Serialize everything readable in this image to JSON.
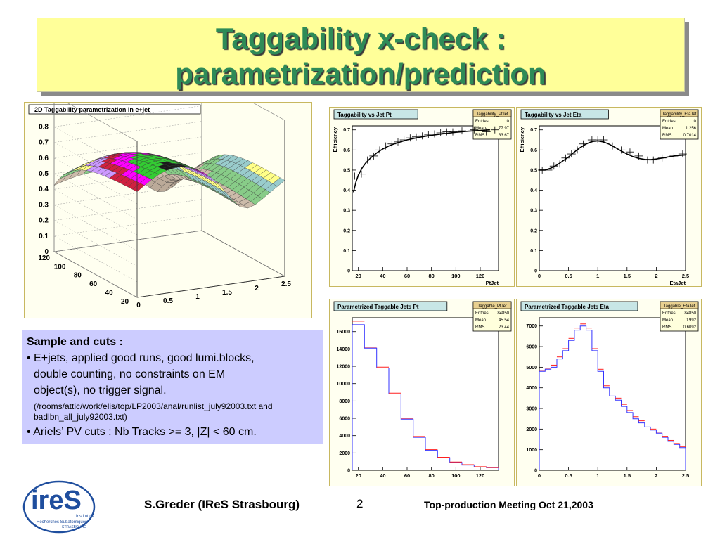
{
  "slide": {
    "title_line1": "Taggability x-check :",
    "title_line2": "parametrization/prediction",
    "footer_author": "S.Greder  (IReS Strasbourg)",
    "footer_page": "2",
    "footer_meeting": "Top-production Meeting   Oct  21,2003",
    "logo_text": "ireS",
    "logo_sub1": "Institut de",
    "logo_sub2": "Recherches Subatomiques",
    "logo_sub3": "STRASBOURG"
  },
  "sample": {
    "heading": "Sample and cuts :",
    "l1": "• E+jets, applied good runs, good lumi.blocks,",
    "l2": "double counting, no constraints on EM",
    "l3": "object(s), no trigger signal.",
    "l4": "(/rooms/attic/work/elis/top/LP2003/anal/runlist_july92003.txt and",
    "l5": "badlbn_all_july92003.txt)",
    "l6": "• Ariels’ PV cuts : Nb Tracks >= 3, |Z| < 60 cm."
  },
  "chart_data": [
    {
      "id": "surface",
      "type": "surface",
      "title": "2D Taggability parametrization in e+jet",
      "zticks": [
        "0",
        "0.1",
        "0.2",
        "0.3",
        "0.4",
        "0.5",
        "0.6",
        "0.7",
        "0.8"
      ],
      "yticks": [
        "120",
        "100",
        "80",
        "60",
        "40",
        "20"
      ],
      "xticks": [
        "0",
        "0.5",
        "1",
        "1.5",
        "2",
        "2.5"
      ]
    },
    {
      "id": "eff_pt",
      "type": "line",
      "title": "Taggability vs Jet Pt",
      "stats_title": "Taggability_PtJet",
      "stats": [
        [
          "Entries",
          "0"
        ],
        [
          "Mean",
          "77.97"
        ],
        [
          "RMS",
          "33.67"
        ]
      ],
      "xlabel": "PtJet",
      "ylabel": "Efficiency",
      "xlim": [
        15,
        135
      ],
      "ylim": [
        0,
        0.72
      ],
      "xticks": [
        20,
        40,
        60,
        80,
        100,
        120
      ],
      "yticks": [
        0,
        0.1,
        0.2,
        0.3,
        0.4,
        0.5,
        0.6,
        0.7
      ],
      "points": [
        [
          17,
          0.47
        ],
        [
          22.5,
          0.48
        ],
        [
          27.5,
          0.55
        ],
        [
          32.5,
          0.57
        ],
        [
          37.5,
          0.6
        ],
        [
          42.5,
          0.62
        ],
        [
          47.5,
          0.63
        ],
        [
          52.5,
          0.64
        ],
        [
          57.5,
          0.65
        ],
        [
          62.5,
          0.66
        ],
        [
          67.5,
          0.665
        ],
        [
          72.5,
          0.67
        ],
        [
          77.5,
          0.675
        ],
        [
          82.5,
          0.68
        ],
        [
          87.5,
          0.685
        ],
        [
          92.5,
          0.69
        ],
        [
          97.5,
          0.69
        ],
        [
          105,
          0.695
        ],
        [
          115,
          0.7
        ],
        [
          125,
          0.69
        ],
        [
          132,
          0.7
        ]
      ],
      "fit": [
        [
          16,
          0.39
        ],
        [
          18,
          0.44
        ],
        [
          20,
          0.475
        ],
        [
          23,
          0.51
        ],
        [
          26,
          0.535
        ],
        [
          30,
          0.56
        ],
        [
          35,
          0.585
        ],
        [
          40,
          0.605
        ],
        [
          45,
          0.62
        ],
        [
          50,
          0.632
        ],
        [
          60,
          0.65
        ],
        [
          70,
          0.663
        ],
        [
          80,
          0.673
        ],
        [
          90,
          0.681
        ],
        [
          100,
          0.688
        ],
        [
          110,
          0.693
        ],
        [
          120,
          0.697
        ],
        [
          128,
          0.7
        ]
      ]
    },
    {
      "id": "eff_eta",
      "type": "line",
      "title": "Taggability vs Jet Eta",
      "stats_title": "Taggability_EtaJet",
      "stats": [
        [
          "Entries",
          "0"
        ],
        [
          "Mean",
          "1.256"
        ],
        [
          "RMS",
          "0.7014"
        ]
      ],
      "xlabel": "EtaJet",
      "ylabel": "Efficiency",
      "xlim": [
        0,
        2.5
      ],
      "ylim": [
        0,
        0.72
      ],
      "xticks": [
        0,
        0.5,
        1,
        1.5,
        2,
        2.5
      ],
      "yticks": [
        0,
        0.1,
        0.2,
        0.3,
        0.4,
        0.5,
        0.6,
        0.7
      ],
      "points": [
        [
          0.05,
          0.5
        ],
        [
          0.15,
          0.5
        ],
        [
          0.25,
          0.52
        ],
        [
          0.35,
          0.53
        ],
        [
          0.45,
          0.56
        ],
        [
          0.55,
          0.58
        ],
        [
          0.65,
          0.6
        ],
        [
          0.75,
          0.63
        ],
        [
          0.9,
          0.65
        ],
        [
          1.0,
          0.65
        ],
        [
          1.1,
          0.65
        ],
        [
          1.25,
          0.62
        ],
        [
          1.4,
          0.6
        ],
        [
          1.55,
          0.59
        ],
        [
          1.7,
          0.57
        ],
        [
          1.85,
          0.55
        ],
        [
          1.95,
          0.55
        ],
        [
          2.1,
          0.56
        ],
        [
          2.3,
          0.57
        ],
        [
          2.45,
          0.58
        ]
      ],
      "fit": [
        [
          0,
          0.5
        ],
        [
          0.1,
          0.5
        ],
        [
          0.2,
          0.51
        ],
        [
          0.3,
          0.525
        ],
        [
          0.4,
          0.545
        ],
        [
          0.5,
          0.565
        ],
        [
          0.6,
          0.59
        ],
        [
          0.7,
          0.612
        ],
        [
          0.8,
          0.63
        ],
        [
          0.9,
          0.642
        ],
        [
          1.0,
          0.645
        ],
        [
          1.1,
          0.64
        ],
        [
          1.2,
          0.628
        ],
        [
          1.3,
          0.612
        ],
        [
          1.4,
          0.595
        ],
        [
          1.5,
          0.58
        ],
        [
          1.6,
          0.567
        ],
        [
          1.7,
          0.558
        ],
        [
          1.8,
          0.553
        ],
        [
          1.9,
          0.552
        ],
        [
          2.0,
          0.555
        ],
        [
          2.1,
          0.56
        ],
        [
          2.2,
          0.565
        ],
        [
          2.3,
          0.57
        ],
        [
          2.4,
          0.573
        ],
        [
          2.5,
          0.575
        ]
      ]
    },
    {
      "id": "hist_pt",
      "type": "bar",
      "title": "Parametrized Taggable Jets Pt",
      "stats_title": "Taggable_PtJet",
      "stats": [
        [
          "Entries",
          "84850"
        ],
        [
          "Mean",
          "45.54"
        ],
        [
          "RMS",
          "23.44"
        ]
      ],
      "xlim": [
        15,
        135
      ],
      "ylim": [
        0,
        17600
      ],
      "xticks": [
        20,
        40,
        60,
        80,
        100,
        120
      ],
      "yticks": [
        0,
        2000,
        4000,
        6000,
        8000,
        10000,
        12000,
        14000,
        16000
      ],
      "bin_edges": [
        15,
        25,
        35,
        45,
        55,
        65,
        75,
        85,
        95,
        105,
        115,
        125,
        135
      ],
      "values_blue": [
        16800,
        14100,
        11800,
        8800,
        5900,
        3800,
        2300,
        1450,
        900,
        600,
        400,
        300
      ],
      "values_red": [
        17200,
        14200,
        11900,
        8900,
        6000,
        3900,
        2400,
        1500,
        950,
        650,
        420,
        310
      ]
    },
    {
      "id": "hist_eta",
      "type": "bar",
      "title": "Parametrized Taggable Jets Eta",
      "stats_title": "Taggable_EtaJet",
      "stats": [
        [
          "Entries",
          "84850"
        ],
        [
          "Mean",
          "0.992"
        ],
        [
          "RMS",
          "0.6092"
        ]
      ],
      "xlim": [
        0,
        2.5
      ],
      "ylim": [
        0,
        7400
      ],
      "xticks": [
        0,
        0.5,
        1,
        1.5,
        2,
        2.5
      ],
      "yticks": [
        0,
        1000,
        2000,
        3000,
        4000,
        5000,
        6000,
        7000
      ],
      "bin_edges": [
        0,
        0.1,
        0.2,
        0.3,
        0.4,
        0.5,
        0.6,
        0.7,
        0.8,
        0.9,
        1.0,
        1.1,
        1.2,
        1.3,
        1.4,
        1.5,
        1.6,
        1.7,
        1.8,
        1.9,
        2.0,
        2.1,
        2.2,
        2.3,
        2.4,
        2.5
      ],
      "values_blue": [
        4800,
        4900,
        5000,
        5400,
        5800,
        6300,
        6800,
        7000,
        6800,
        5800,
        4800,
        4000,
        3600,
        3400,
        3100,
        2800,
        2500,
        2300,
        2100,
        1950,
        1800,
        1600,
        1400,
        1250,
        1100
      ],
      "values_red": [
        4850,
        4950,
        5100,
        5500,
        5900,
        6400,
        6900,
        7100,
        6900,
        5900,
        4900,
        4100,
        3700,
        3500,
        3200,
        2900,
        2600,
        2400,
        2200,
        2000,
        1850,
        1650,
        1450,
        1300,
        1150
      ]
    }
  ]
}
